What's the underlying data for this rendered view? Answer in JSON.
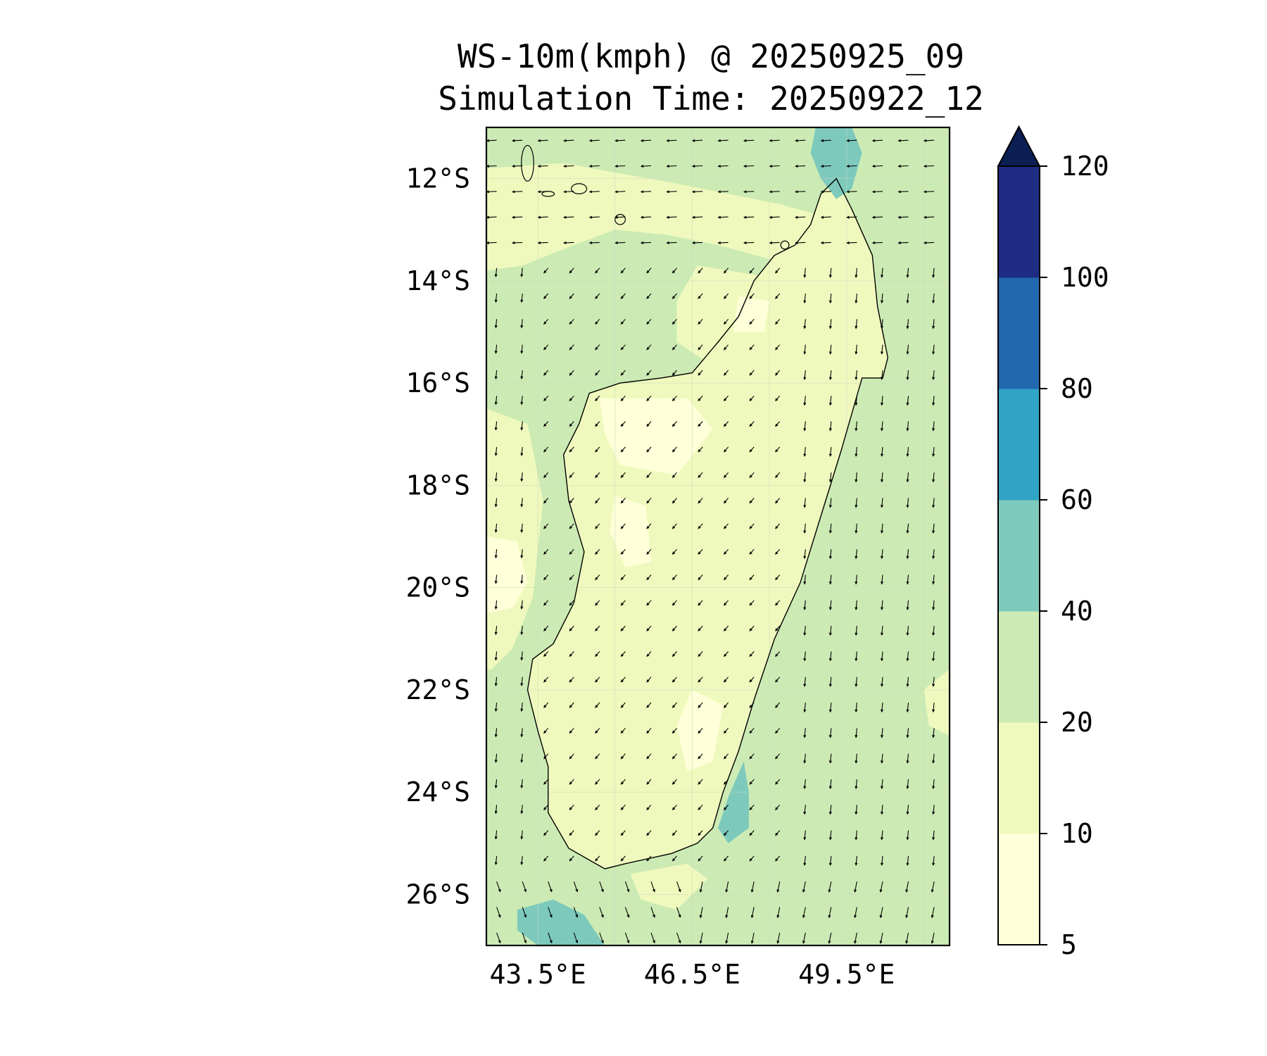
{
  "title": "WS-10m(kmph) @ 20250925_09",
  "subtitle": "Simulation Time: 20250922_12",
  "map": {
    "region": "Madagascar",
    "lon_range": [
      42.5,
      51.5
    ],
    "lat_range": [
      -27,
      -11
    ],
    "lat_ticks": [
      {
        "value": -12,
        "label": "12°S"
      },
      {
        "value": -14,
        "label": "14°S"
      },
      {
        "value": -16,
        "label": "16°S"
      },
      {
        "value": -18,
        "label": "18°S"
      },
      {
        "value": -20,
        "label": "20°S"
      },
      {
        "value": -22,
        "label": "22°S"
      },
      {
        "value": -24,
        "label": "24°S"
      },
      {
        "value": -26,
        "label": "26°S"
      }
    ],
    "lon_ticks": [
      {
        "value": 43.5,
        "label": "43.5°E"
      },
      {
        "value": 46.5,
        "label": "46.5°E"
      },
      {
        "value": 49.5,
        "label": "49.5°E"
      }
    ],
    "grid": true,
    "wind_vectors": true,
    "extend_arrow": "max",
    "gridline_color": "#c8d8c0",
    "coast_color": "#000000"
  },
  "colorbar": {
    "levels": [
      {
        "from": 5,
        "to": 10,
        "color": "#ffffd9"
      },
      {
        "from": 10,
        "to": 20,
        "color": "#f0f9bd"
      },
      {
        "from": 20,
        "to": 40,
        "color": "#ccebb4"
      },
      {
        "from": 40,
        "to": 60,
        "color": "#7dcabc"
      },
      {
        "from": 60,
        "to": 80,
        "color": "#31a4c5"
      },
      {
        "from": 80,
        "to": 100,
        "color": "#2168af"
      },
      {
        "from": 100,
        "to": 120,
        "color": "#1e2c83"
      }
    ],
    "extend_color": "#0b1f55",
    "tick_labels": [
      "5",
      "10",
      "20",
      "40",
      "60",
      "80",
      "100",
      "120"
    ]
  }
}
